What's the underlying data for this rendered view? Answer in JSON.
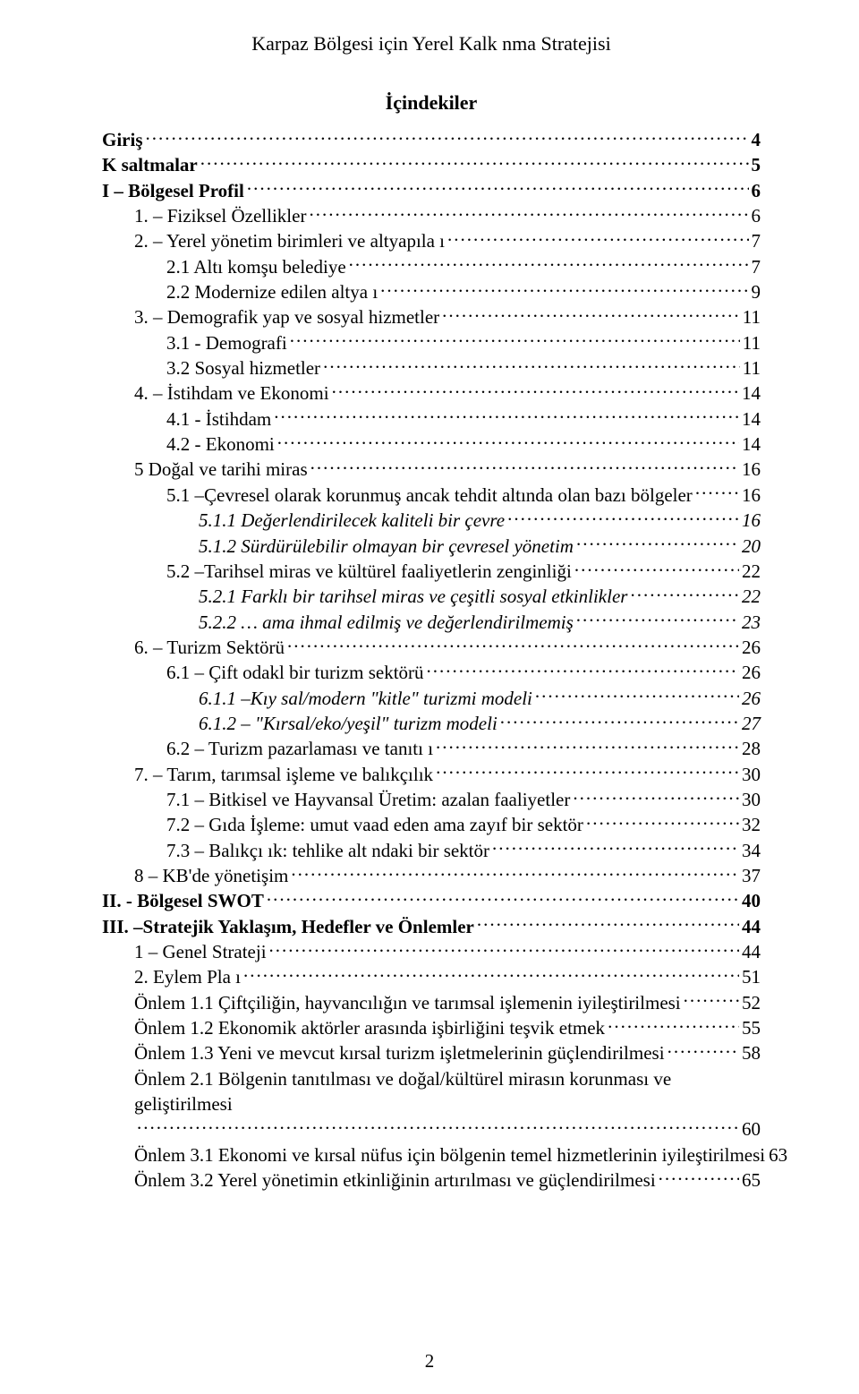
{
  "header": "Karpaz Bölgesi için Yerel Kalk nma Stratejisi",
  "toc_title": "İçindekiler",
  "page_number": "2",
  "entries": [
    {
      "label": "Giriş",
      "page": "4",
      "level": 0,
      "bold": true,
      "italic": false
    },
    {
      "label": "K saltmalar",
      "page": "5",
      "level": 0,
      "bold": true,
      "italic": false
    },
    {
      "label": "I – Bölgesel Profil",
      "page": "6",
      "level": 0,
      "bold": true,
      "italic": false
    },
    {
      "label": "1. – Fiziksel Özellikler",
      "page": "6",
      "level": 1,
      "bold": false,
      "italic": false
    },
    {
      "label": "2. – Yerel yönetim birimleri ve altyapıla ı",
      "page": "7",
      "level": 1,
      "bold": false,
      "italic": false
    },
    {
      "label": "2.1 Altı komşu belediye",
      "page": "7",
      "level": 2,
      "bold": false,
      "italic": false
    },
    {
      "label": "2.2 Modernize edilen altya ı",
      "page": "9",
      "level": 2,
      "bold": false,
      "italic": false
    },
    {
      "label": "3. – Demografik yap  ve sosyal hizmetler",
      "page": "11",
      "level": 1,
      "bold": false,
      "italic": false
    },
    {
      "label": "3.1 - Demografi",
      "page": "11",
      "level": 2,
      "bold": false,
      "italic": false
    },
    {
      "label": "3.2 Sosyal hizmetler",
      "page": "11",
      "level": 2,
      "bold": false,
      "italic": false
    },
    {
      "label": "4. – İstihdam ve Ekonomi",
      "page": "14",
      "level": 1,
      "bold": false,
      "italic": false
    },
    {
      "label": "4.1 - İstihdam",
      "page": "14",
      "level": 2,
      "bold": false,
      "italic": false
    },
    {
      "label": "4.2 - Ekonomi",
      "page": "14",
      "level": 2,
      "bold": false,
      "italic": false
    },
    {
      "label": "5 Doğal ve tarihi miras",
      "page": "16",
      "level": 1,
      "bold": false,
      "italic": false
    },
    {
      "label": "5.1 –Çevresel olarak korunmuş ancak tehdit altında olan bazı bölgeler",
      "page": "16",
      "level": 2,
      "bold": false,
      "italic": false
    },
    {
      "label": "5.1.1 Değerlendirilecek  kaliteli bir çevre",
      "page": "16",
      "level": 3,
      "bold": false,
      "italic": true
    },
    {
      "label": "5.1.2 Sürdürülebilir olmayan bir çevresel yönetim",
      "page": "20",
      "level": 3,
      "bold": false,
      "italic": true
    },
    {
      "label": "5.2 –Tarihsel miras ve kültürel faaliyetlerin zenginliği",
      "page": "22",
      "level": 2,
      "bold": false,
      "italic": false
    },
    {
      "label": "5.2.1 Farklı bir tarihsel miras ve çeşitli sosyal etkinlikler",
      "page": "22",
      "level": 3,
      "bold": false,
      "italic": true
    },
    {
      "label": "5.2.2 … ama ihmal edilmiş ve değerlendirilmemiş",
      "page": "23",
      "level": 3,
      "bold": false,
      "italic": true
    },
    {
      "label": "6. – Turizm Sektörü",
      "page": "26",
      "level": 1,
      "bold": false,
      "italic": false
    },
    {
      "label": "6.1 – Çift odakl  bir turizm sektörü",
      "page": "26",
      "level": 2,
      "bold": false,
      "italic": false
    },
    {
      "label": "6.1.1 –Kıy sal/modern \"kitle\" turizmi modeli",
      "page": "26",
      "level": 3,
      "bold": false,
      "italic": true
    },
    {
      "label": "6.1.2 – \"Kırsal/eko/yeşil\" turizm modeli",
      "page": "27",
      "level": 3,
      "bold": false,
      "italic": true
    },
    {
      "label": "6.2 – Turizm pazarlaması ve tanıtı  ı",
      "page": "28",
      "level": 2,
      "bold": false,
      "italic": false
    },
    {
      "label": "7. – Tarım, tarımsal işleme ve balıkçılık",
      "page": "30",
      "level": 1,
      "bold": false,
      "italic": false
    },
    {
      "label": "7.1 – Bitkisel ve Hayvansal Üretim: azalan faaliyetler",
      "page": "30",
      "level": 2,
      "bold": false,
      "italic": false
    },
    {
      "label": "7.2 – Gıda İşleme: umut vaad eden ama zayıf bir sektör",
      "page": "32",
      "level": 2,
      "bold": false,
      "italic": false
    },
    {
      "label": "7.3 – Balıkçı ık: tehlike alt ndaki bir sektör",
      "page": "34",
      "level": 2,
      "bold": false,
      "italic": false
    },
    {
      "label": "8 – KB'de yönetişim",
      "page": "37",
      "level": 1,
      "bold": false,
      "italic": false
    },
    {
      "label": "II. - Bölgesel SWOT",
      "page": "40",
      "level": 0,
      "bold": true,
      "italic": false
    },
    {
      "label": "III. –Stratejik Yaklaşım, Hedefler ve Önlemler",
      "page": "44",
      "level": 0,
      "bold": true,
      "italic": false
    },
    {
      "label": "1 – Genel Strateji",
      "page": "44",
      "level": 1,
      "bold": false,
      "italic": false
    },
    {
      "label": "2. Eylem Pla ı",
      "page": "51",
      "level": 1,
      "bold": false,
      "italic": false
    },
    {
      "label": "Önlem 1.1 Çiftçiliğin, hayvancılığın ve tarımsal işlemenin iyileştirilmesi",
      "page": "52",
      "level": 1,
      "bold": false,
      "italic": false
    },
    {
      "label": "Önlem 1.2 Ekonomik aktörler arasında işbirliğini teşvik etmek",
      "page": "55",
      "level": 1,
      "bold": false,
      "italic": false
    },
    {
      "label": "Önlem 1.3 Yeni ve mevcut kırsal turizm işletmelerinin güçlendirilmesi",
      "page": "58",
      "level": 1,
      "bold": false,
      "italic": false
    },
    {
      "label": "Önlem 2.1 Bölgenin tanıtılması ve doğal/kültürel mirasın korunması ve geliştirilmesi",
      "page": "60",
      "level": 1,
      "bold": false,
      "italic": false,
      "wrap": true
    },
    {
      "label": "Önlem 3.1 Ekonomi ve kırsal nüfus için bölgenin temel hizmetlerinin iyileştirilmesi",
      "page": "63",
      "level": 1,
      "bold": false,
      "italic": false,
      "no_leaders": true
    },
    {
      "label": "Önlem 3.2 Yerel yönetimin etkinliğinin artırılması ve güçlendirilmesi",
      "page": "65",
      "level": 1,
      "bold": false,
      "italic": false
    }
  ]
}
